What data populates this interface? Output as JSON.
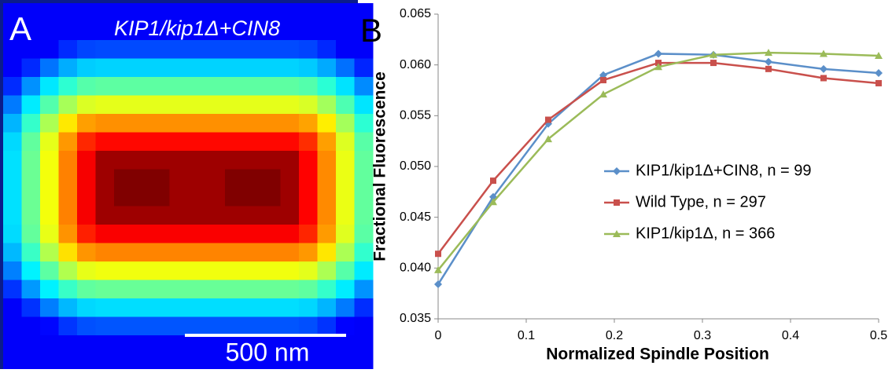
{
  "panel_a": {
    "label": "A",
    "title": "KIP1/kip1Δ+CIN8",
    "scale_bar": "500 nm"
  },
  "chart_data": {
    "type": "line",
    "panel_label": "B",
    "x_label": "Normalized Spindle Position",
    "y_label": "Fractional Fluorescence",
    "x": [
      0,
      0.0625,
      0.125,
      0.1875,
      0.25,
      0.3125,
      0.375,
      0.4375,
      0.5
    ],
    "series": [
      {
        "name": "KIP1/kip1Δ+CIN8, n = 99",
        "color": "#5b8fc9",
        "marker": "diamond",
        "values": [
          0.0384,
          0.047,
          0.0542,
          0.059,
          0.0611,
          0.061,
          0.0603,
          0.0596,
          0.0592
        ]
      },
      {
        "name": "Wild Type, n = 297",
        "color": "#c9504c",
        "marker": "square",
        "values": [
          0.0414,
          0.0486,
          0.0546,
          0.0585,
          0.0602,
          0.0602,
          0.0596,
          0.0587,
          0.0582
        ]
      },
      {
        "name": "KIP1/kip1Δ, n = 366",
        "color": "#9bbb59",
        "marker": "triangle",
        "values": [
          0.0398,
          0.0465,
          0.0527,
          0.0571,
          0.0598,
          0.061,
          0.0612,
          0.0611,
          0.0609
        ]
      }
    ],
    "xlim": [
      0,
      0.5
    ],
    "xticks": [
      0,
      0.1,
      0.2,
      0.3,
      0.4,
      0.5
    ],
    "ylim": [
      0.035,
      0.065
    ],
    "yticks": [
      {
        "value": 0.035,
        "label": "0.035"
      },
      {
        "value": 0.04,
        "label": "0.040"
      },
      {
        "value": 0.045,
        "label": "0.045"
      },
      {
        "value": 0.05,
        "label": "0.050"
      },
      {
        "value": 0.055,
        "label": "0.055"
      },
      {
        "value": 0.06,
        "label": "0.060"
      },
      {
        "value": 0.065,
        "label": "0.065"
      }
    ],
    "grid": false,
    "legend": "right"
  }
}
